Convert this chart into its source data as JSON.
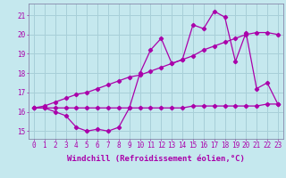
{
  "background_color": "#c5e8ee",
  "grid_color": "#a8cfd8",
  "line_color": "#aa00aa",
  "xlabel": "Windchill (Refroidissement éolien,°C)",
  "xlabel_fontsize": 6.5,
  "tick_fontsize": 5.5,
  "ytick_labels": [
    15,
    16,
    17,
    18,
    19,
    20,
    21
  ],
  "xtick_labels": [
    0,
    1,
    2,
    3,
    4,
    5,
    6,
    7,
    8,
    9,
    10,
    11,
    12,
    13,
    14,
    15,
    16,
    17,
    18,
    19,
    20,
    21,
    22,
    23
  ],
  "xlim": [
    -0.5,
    23.5
  ],
  "ylim": [
    14.6,
    21.6
  ],
  "series_flat_x": [
    0,
    1,
    2,
    3,
    4,
    5,
    6,
    7,
    8,
    9,
    10,
    11,
    12,
    13,
    14,
    15,
    16,
    17,
    18,
    19,
    20,
    21,
    22,
    23
  ],
  "series_flat_y": [
    16.2,
    16.2,
    16.2,
    16.2,
    16.2,
    16.2,
    16.2,
    16.2,
    16.2,
    16.2,
    16.2,
    16.2,
    16.2,
    16.2,
    16.2,
    16.3,
    16.3,
    16.3,
    16.3,
    16.3,
    16.3,
    16.3,
    16.4,
    16.4
  ],
  "series_diag_x": [
    0,
    1,
    2,
    3,
    4,
    5,
    6,
    7,
    8,
    9,
    10,
    11,
    12,
    13,
    14,
    15,
    16,
    17,
    18,
    19,
    20,
    21,
    22,
    23
  ],
  "series_diag_y": [
    16.2,
    16.3,
    16.5,
    16.7,
    16.9,
    17.0,
    17.2,
    17.4,
    17.6,
    17.8,
    17.9,
    18.1,
    18.3,
    18.5,
    18.7,
    18.9,
    19.2,
    19.4,
    19.6,
    19.8,
    20.0,
    20.1,
    20.1,
    20.0
  ],
  "series_zigzag_x": [
    0,
    1,
    2,
    3,
    4,
    5,
    6,
    7,
    8,
    9,
    10,
    11,
    12,
    13,
    14,
    15,
    16,
    17,
    18,
    19,
    20,
    21,
    22,
    23
  ],
  "series_zigzag_y": [
    16.2,
    16.2,
    16.0,
    15.8,
    15.2,
    15.0,
    15.1,
    15.0,
    15.2,
    16.2,
    18.0,
    19.2,
    19.8,
    18.5,
    18.7,
    20.5,
    20.3,
    21.2,
    20.9,
    18.6,
    20.1,
    17.2,
    17.5,
    16.4
  ]
}
